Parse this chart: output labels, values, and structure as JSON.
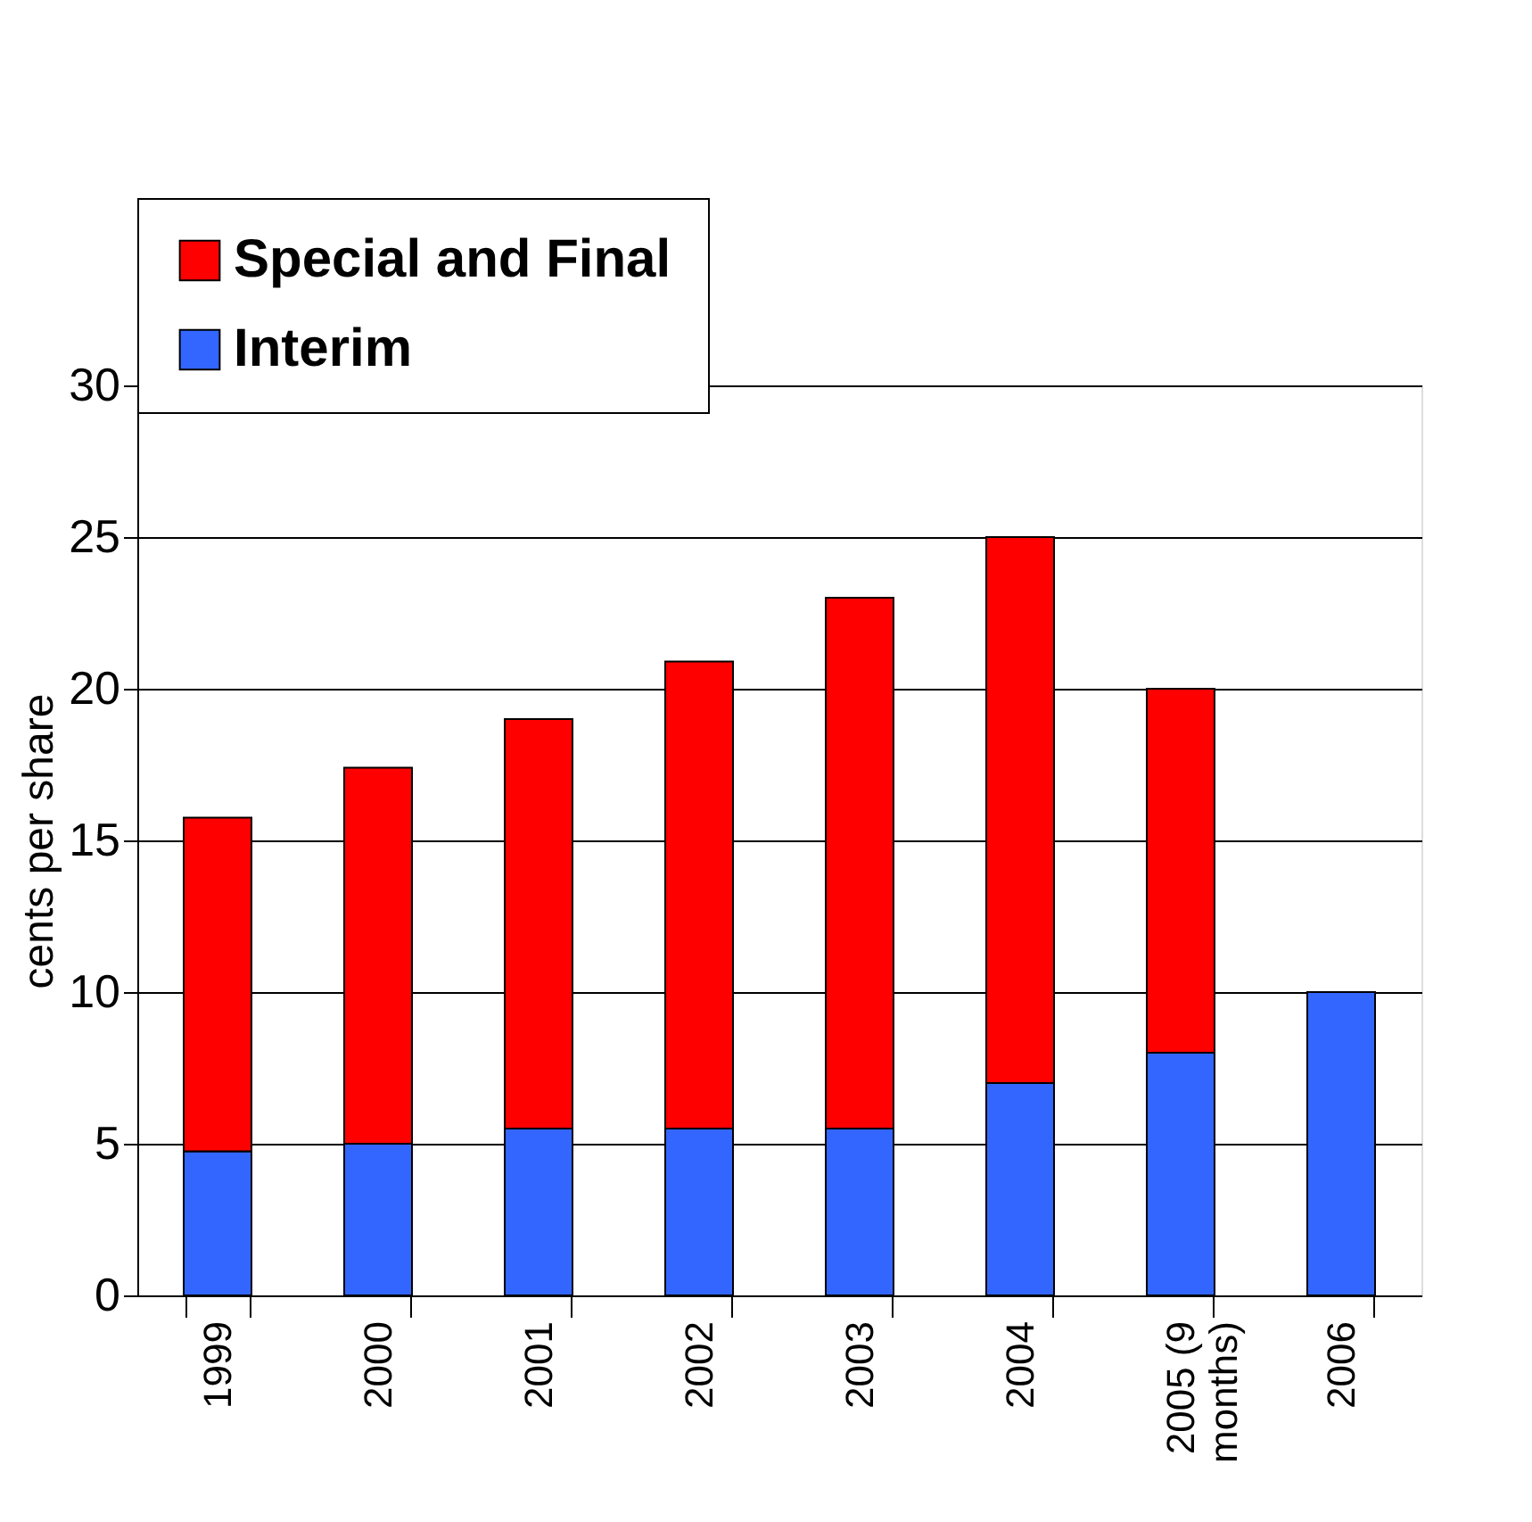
{
  "chart_data": {
    "type": "bar",
    "stacked": true,
    "ylabel": "cents per share",
    "categories": [
      "1999",
      "2000",
      "2001",
      "2002",
      "2003",
      "2004",
      "2005 (9 months)",
      "2006"
    ],
    "series": [
      {
        "name": "Interim",
        "color": "#3366ff",
        "values": [
          4.75,
          5,
          5.5,
          5.5,
          5.5,
          7,
          8,
          10
        ]
      },
      {
        "name": "Special and Final",
        "color": "#ff0000",
        "values": [
          11,
          12.4,
          13.5,
          15.4,
          17.5,
          18,
          12,
          null
        ]
      }
    ],
    "ylim": [
      0,
      30
    ],
    "yticks": [
      0,
      5,
      10,
      15,
      20,
      25,
      30
    ],
    "grid": "y",
    "legend": "top left"
  }
}
